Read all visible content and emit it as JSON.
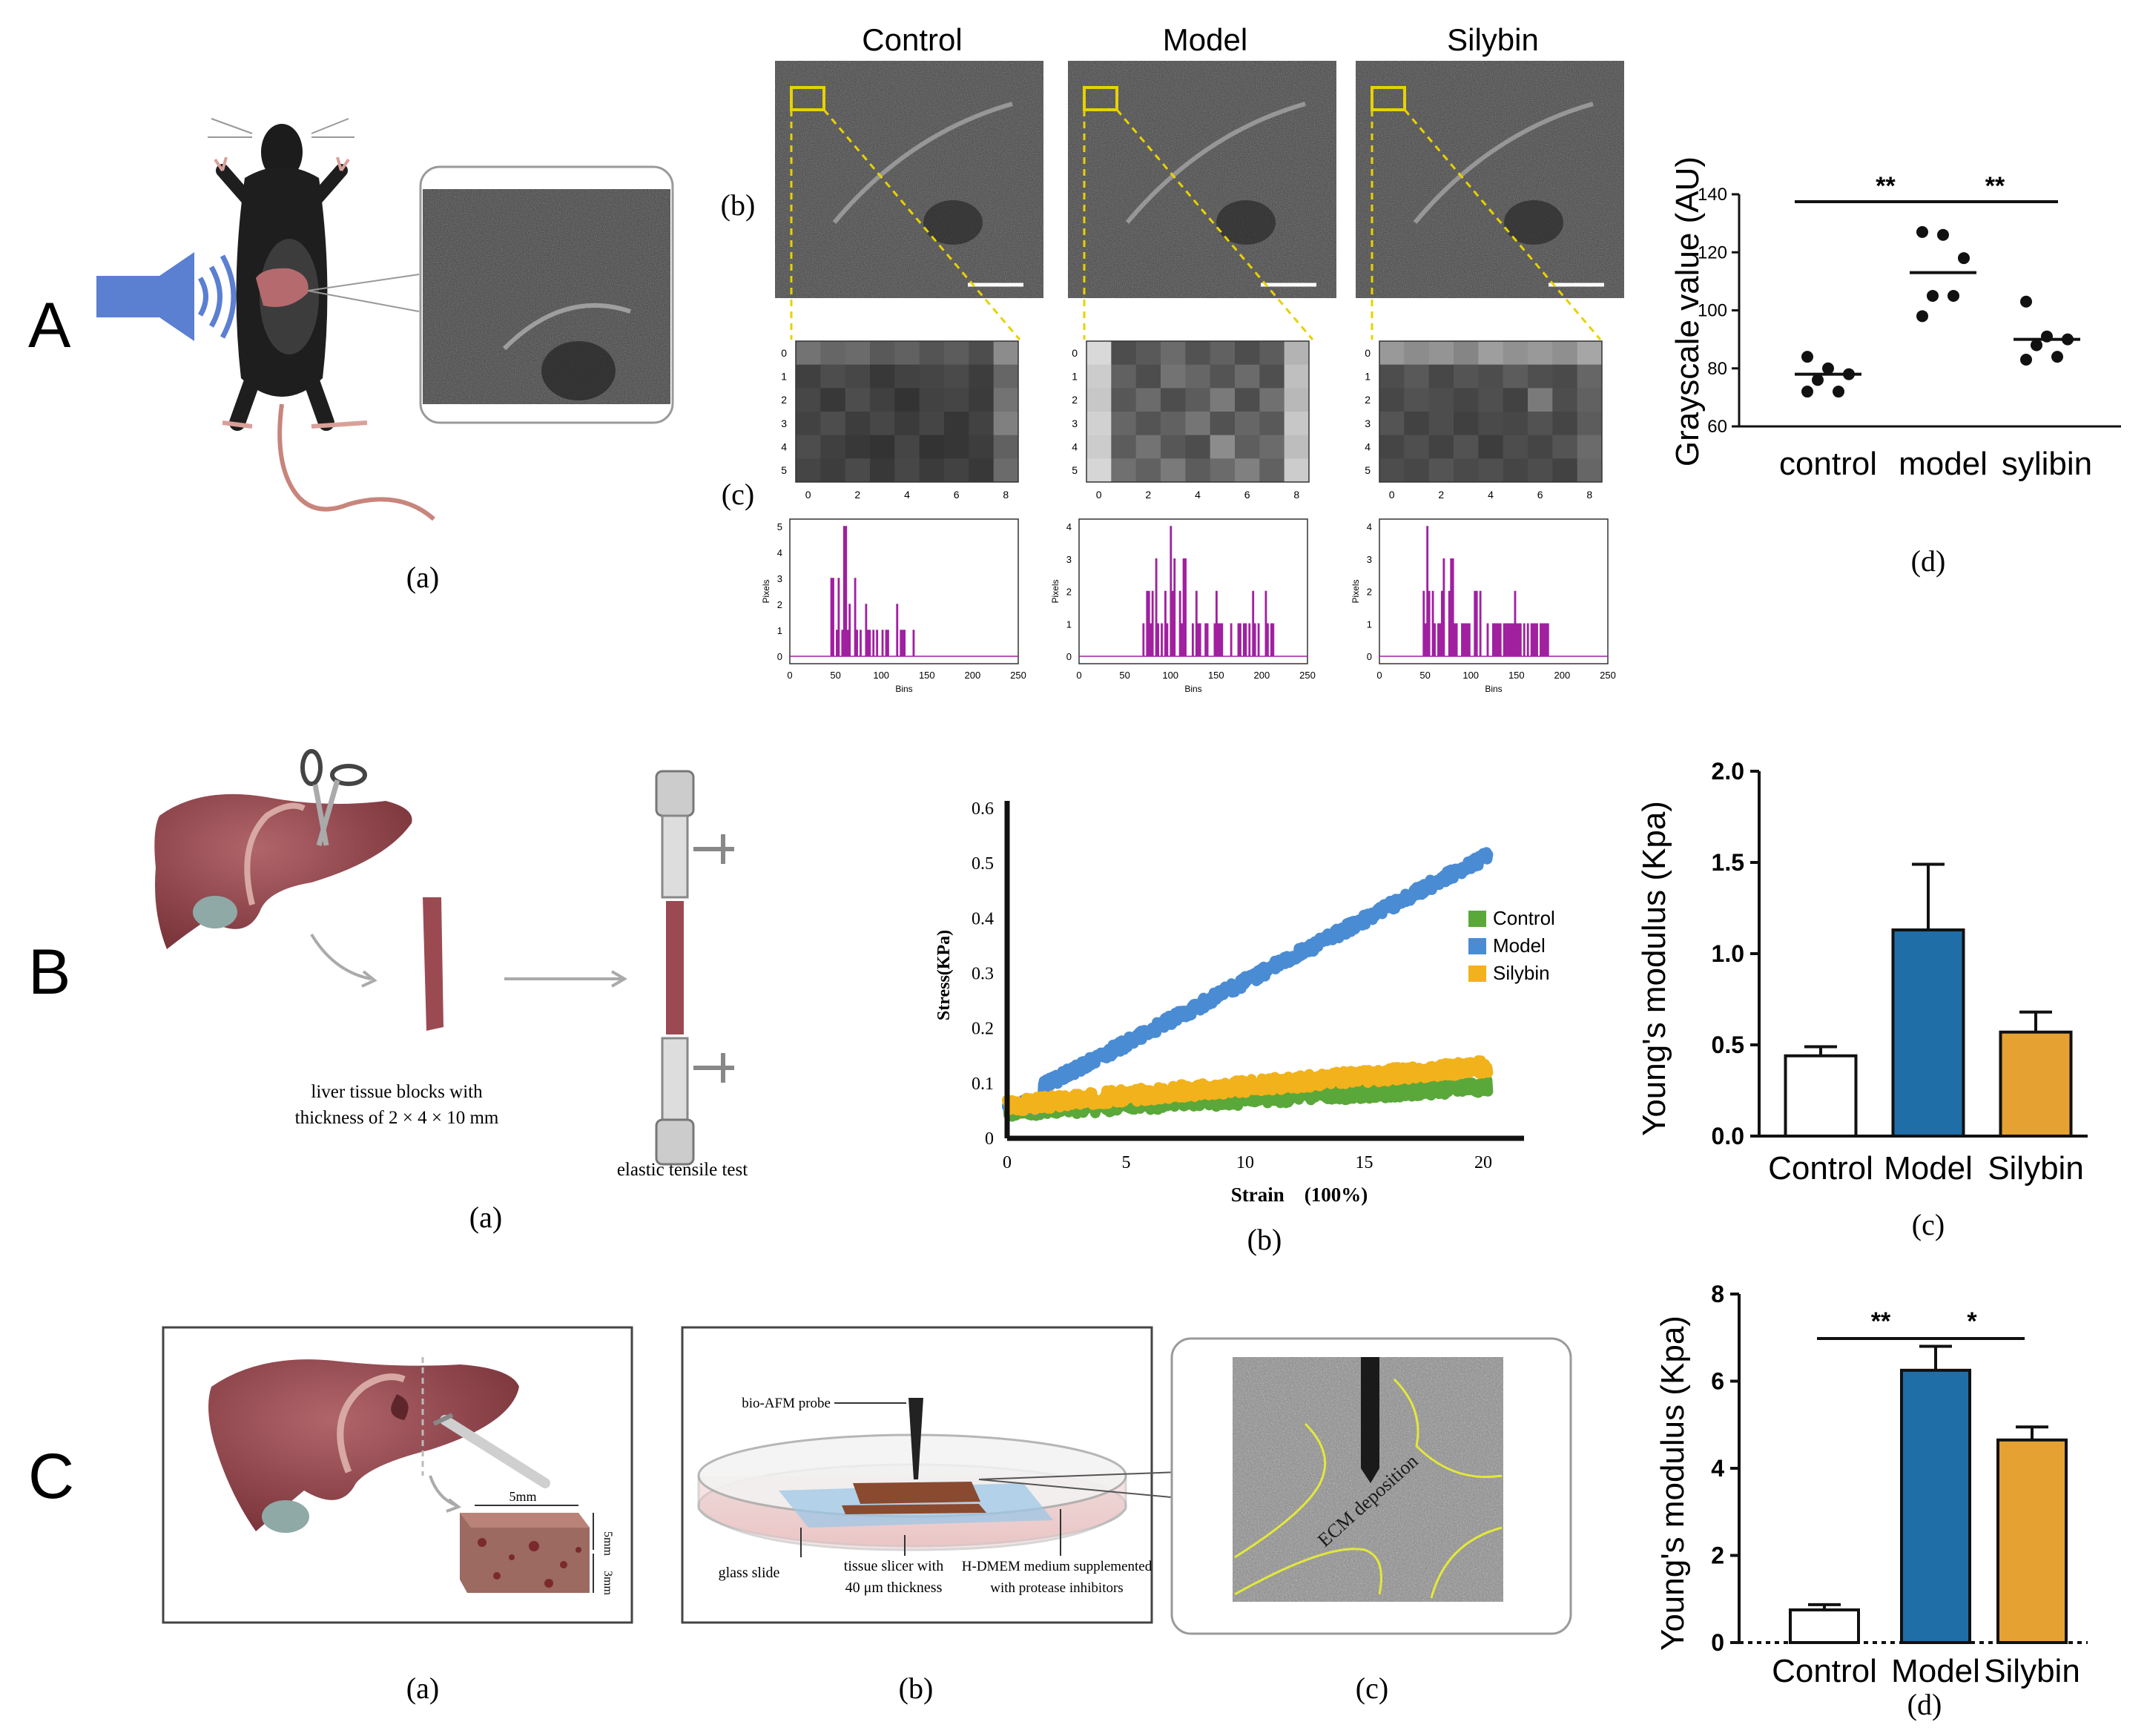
{
  "panels": {
    "A": {
      "label": "A",
      "sub_a": "(a)",
      "sub_b": "(b)",
      "sub_c": "(c)",
      "sub_d": "(d)",
      "groups": [
        "Control",
        "Model",
        "Silybin"
      ],
      "matrix_xticks": [
        "0",
        "2",
        "4",
        "6",
        "8"
      ],
      "matrix_yticks": [
        "0",
        "1",
        "2",
        "3",
        "4",
        "5"
      ],
      "matrices": [
        [
          [
            0.45,
            0.4,
            0.42,
            0.35,
            0.38,
            0.33,
            0.36,
            0.3,
            0.55
          ],
          [
            0.25,
            0.3,
            0.28,
            0.22,
            0.26,
            0.27,
            0.29,
            0.24,
            0.4
          ],
          [
            0.28,
            0.22,
            0.3,
            0.25,
            0.2,
            0.26,
            0.27,
            0.23,
            0.45
          ],
          [
            0.26,
            0.3,
            0.24,
            0.28,
            0.23,
            0.27,
            0.21,
            0.26,
            0.5
          ],
          [
            0.3,
            0.25,
            0.22,
            0.2,
            0.27,
            0.2,
            0.21,
            0.24,
            0.38
          ],
          [
            0.27,
            0.24,
            0.29,
            0.22,
            0.28,
            0.23,
            0.26,
            0.22,
            0.42
          ]
        ],
        [
          [
            0.85,
            0.3,
            0.35,
            0.42,
            0.32,
            0.38,
            0.3,
            0.36,
            0.7
          ],
          [
            0.8,
            0.38,
            0.3,
            0.45,
            0.4,
            0.33,
            0.42,
            0.31,
            0.75
          ],
          [
            0.78,
            0.34,
            0.42,
            0.3,
            0.36,
            0.48,
            0.3,
            0.44,
            0.72
          ],
          [
            0.82,
            0.4,
            0.33,
            0.38,
            0.46,
            0.32,
            0.4,
            0.35,
            0.78
          ],
          [
            0.8,
            0.36,
            0.45,
            0.34,
            0.3,
            0.55,
            0.37,
            0.42,
            0.74
          ],
          [
            0.84,
            0.44,
            0.38,
            0.48,
            0.36,
            0.42,
            0.5,
            0.38,
            0.8
          ]
        ],
        [
          [
            0.6,
            0.55,
            0.58,
            0.52,
            0.62,
            0.57,
            0.6,
            0.56,
            0.65
          ],
          [
            0.3,
            0.35,
            0.28,
            0.33,
            0.3,
            0.36,
            0.31,
            0.29,
            0.4
          ],
          [
            0.28,
            0.32,
            0.3,
            0.27,
            0.31,
            0.26,
            0.48,
            0.3,
            0.38
          ],
          [
            0.33,
            0.26,
            0.3,
            0.25,
            0.29,
            0.28,
            0.32,
            0.27,
            0.36
          ],
          [
            0.27,
            0.31,
            0.26,
            0.32,
            0.24,
            0.3,
            0.27,
            0.33,
            0.42
          ],
          [
            0.3,
            0.28,
            0.33,
            0.29,
            0.31,
            0.27,
            0.3,
            0.26,
            0.4
          ]
        ]
      ],
      "histograms": [
        {
          "ylabel": "Pixels",
          "xlabel": "Bins",
          "xticks": [
            "0",
            "50",
            "100",
            "150",
            "200",
            "250"
          ],
          "yticks": [
            "0",
            "1",
            "2",
            "3",
            "4",
            "5"
          ],
          "range": [
            45,
            135
          ],
          "peak": 60,
          "peak_value": 5
        },
        {
          "ylabel": "Pixels",
          "xlabel": "Bins",
          "xticks": [
            "0",
            "50",
            "100",
            "150",
            "200",
            "250"
          ],
          "yticks": [
            "0",
            "1",
            "2",
            "3",
            "4"
          ],
          "range": [
            70,
            215
          ],
          "peak": 100,
          "peak_value": 4
        },
        {
          "ylabel": "Pixels",
          "xlabel": "Bins",
          "xticks": [
            "0",
            "50",
            "100",
            "150",
            "200",
            "250"
          ],
          "yticks": [
            "0",
            "1",
            "2",
            "3",
            "4"
          ],
          "range": [
            48,
            185
          ],
          "peak": 52,
          "peak_value": 4
        }
      ],
      "dot_chart": {
        "ylabel": "Grayscale value (AU)",
        "yticks": [
          "60",
          "80",
          "100",
          "120",
          "140"
        ],
        "categories": [
          "control",
          "model",
          "sylibin"
        ],
        "points": [
          [
            84,
            80,
            78,
            76,
            72,
            72
          ],
          [
            127,
            126,
            118,
            105,
            105,
            98
          ],
          [
            103,
            91,
            90,
            88,
            84,
            83
          ]
        ],
        "means": [
          78,
          113,
          90
        ],
        "sig": [
          {
            "from": 0,
            "to": 1,
            "label": "**"
          },
          {
            "from": 1,
            "to": 2,
            "label": "**"
          }
        ]
      }
    },
    "B": {
      "label": "B",
      "sub_a": "(a)",
      "sub_b": "(b)",
      "sub_c": "(c)",
      "tissue_caption_1": "liver tissue blocks with",
      "tissue_caption_2": "thickness of 2 × 4 × 10 mm",
      "test_caption": "elastic tensile test",
      "stress_chart": {
        "ylabel": "Stress(KPa)",
        "xlabel": "Strain　(100%)",
        "xticks": [
          "0",
          "5",
          "10",
          "15",
          "20"
        ],
        "yticks": [
          "0",
          "0.1",
          "0.2",
          "0.3",
          "0.4",
          "0.5",
          "0.6"
        ],
        "legend": [
          "Control",
          "Model",
          "Silybin"
        ],
        "colors": [
          "#5aa83a",
          "#4a8cd4",
          "#f2b21b"
        ],
        "lines": [
          {
            "name": "Control",
            "start": 0.05,
            "end": 0.095
          },
          {
            "name": "Model",
            "start": 0.06,
            "end": 0.51
          },
          {
            "name": "Silybin",
            "start": 0.06,
            "end": 0.13
          }
        ]
      },
      "bar_chart": {
        "ylabel": "Young's modulus  (Kpa)",
        "yticks": [
          "0.0",
          "0.5",
          "1.0",
          "1.5",
          "2.0"
        ],
        "categories": [
          "Control",
          "Model",
          "Silybin"
        ],
        "values": [
          0.44,
          1.13,
          0.57
        ],
        "errors": [
          0.05,
          0.36,
          0.11
        ],
        "colors": [
          "#ffffff",
          "#1f6ea8",
          "#e5a232"
        ]
      }
    },
    "C": {
      "label": "C",
      "sub_a": "(a)",
      "sub_b": "(b)",
      "sub_c": "(c)",
      "sub_d": "(d)",
      "dim_5mm": "5mm",
      "dim_5mm_v": "5mm",
      "dim_3mm": "3mm",
      "afm_probe": "bio-AFM probe",
      "glass_slide": "glass slide",
      "slicer_1": "tissue slicer with",
      "slicer_2": "40 μm  thickness",
      "medium_1": "H-DMEM medium supplemented",
      "medium_2": "with protease inhibitors",
      "ecm_label": "ECM deposition",
      "bar_chart": {
        "ylabel": "Young's modulus  (Kpa)",
        "yticks": [
          "0",
          "2",
          "4",
          "6",
          "8"
        ],
        "categories": [
          "Control",
          "Model",
          "Silybin"
        ],
        "values": [
          0.75,
          6.25,
          4.65
        ],
        "errors": [
          0.12,
          0.55,
          0.3
        ],
        "colors": [
          "#ffffff",
          "#1f6ea8",
          "#e5a232"
        ],
        "sig": [
          {
            "from": 0,
            "to": 1,
            "label": "**"
          },
          {
            "from": 1,
            "to": 2,
            "label": "*"
          }
        ]
      }
    }
  }
}
